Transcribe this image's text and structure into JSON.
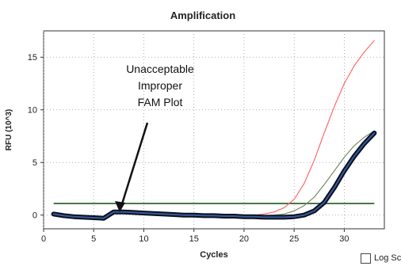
{
  "chart_data": {
    "type": "line",
    "title": "Amplification",
    "xlabel": "Cycles",
    "ylabel": "RFU (10^3)",
    "xlim": [
      0,
      34
    ],
    "ylim": [
      -1.3,
      17.5
    ],
    "x_ticks": [
      "0",
      "5",
      "10",
      "15",
      "20",
      "25",
      "30"
    ],
    "y_ticks": [
      "0",
      "5",
      "10",
      "15"
    ],
    "grid": true,
    "annotation": [
      "Unacceptable",
      "Improper",
      "FAM Plot"
    ],
    "threshold": 1.1,
    "series": [
      {
        "color": "#1a2a50",
        "x": [
          1,
          2,
          3,
          4,
          5,
          6,
          7,
          8,
          9,
          10,
          11,
          12,
          13,
          14,
          15,
          16,
          17,
          18,
          19,
          20,
          21,
          22,
          23,
          24,
          25,
          26,
          27,
          28,
          29,
          30,
          31,
          32,
          33
        ],
        "y": [
          0.1,
          -0.05,
          -0.15,
          -0.2,
          -0.25,
          -0.3,
          0.3,
          0.3,
          0.25,
          0.2,
          0.15,
          0.1,
          0.05,
          0.0,
          0.0,
          -0.05,
          -0.05,
          -0.1,
          -0.1,
          -0.15,
          -0.15,
          -0.2,
          -0.2,
          -0.2,
          -0.15,
          0.0,
          0.4,
          1.2,
          2.6,
          4.2,
          5.6,
          6.8,
          7.8
        ]
      },
      {
        "color": "#ff6a6a",
        "x": [
          20,
          21,
          22,
          23,
          24,
          25,
          26,
          27,
          28,
          29,
          30,
          31,
          32,
          33
        ],
        "y": [
          -0.1,
          0.0,
          0.1,
          0.3,
          0.7,
          1.5,
          3.0,
          5.2,
          7.8,
          10.3,
          12.5,
          14.2,
          15.5,
          16.6
        ]
      },
      {
        "color": "#7a8a6a",
        "x": [
          20,
          21,
          22,
          23,
          24,
          25,
          26,
          27,
          28,
          29,
          30,
          31,
          32,
          33
        ],
        "y": [
          -0.1,
          -0.1,
          -0.05,
          0.0,
          0.1,
          0.4,
          0.9,
          1.7,
          2.9,
          4.2,
          5.5,
          6.6,
          7.4,
          8.0
        ]
      }
    ]
  },
  "log_scale": {
    "label": "Log Sc",
    "checked": false
  }
}
